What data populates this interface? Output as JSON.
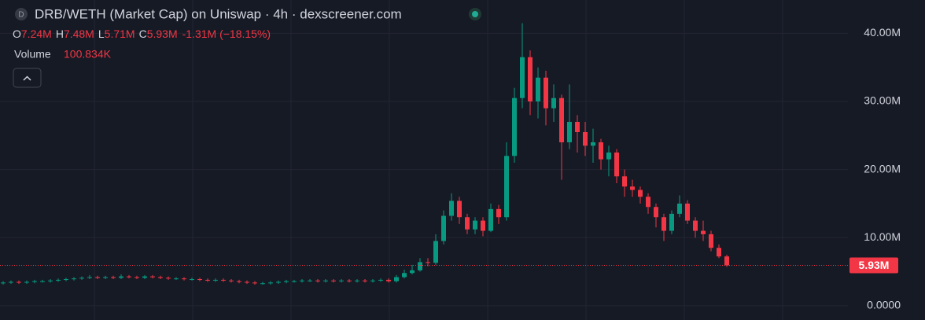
{
  "chart_data": {
    "type": "candlestick",
    "title": "DRB/WETH (Market Cap) on Uniswap · 4h · dexscreener.com",
    "icon_letter": "D",
    "ohlc_legend": [
      {
        "label": "O",
        "value": "7.24M"
      },
      {
        "label": "H",
        "value": "7.48M"
      },
      {
        "label": "L",
        "value": "5.71M"
      },
      {
        "label": "C",
        "value": "5.93M"
      }
    ],
    "change": "-1.31M (−18.15%)",
    "volume_label": "Volume",
    "volume_value": "100.834K",
    "up_color": "#089981",
    "down_color": "#f23645",
    "ylim": [
      -2.1,
      44.9
    ],
    "yticks": [
      {
        "value": 0,
        "label": "0.0000"
      },
      {
        "value": 10,
        "label": "10.00M"
      },
      {
        "value": 20,
        "label": "20.00M"
      },
      {
        "value": 30,
        "label": "30.00M"
      },
      {
        "value": 40,
        "label": "40.00M"
      }
    ],
    "grid": true,
    "last_price": {
      "value": 5.93,
      "label": "5.93M"
    },
    "open": [
      3.3,
      3.4,
      3.5,
      3.4,
      3.5,
      3.6,
      3.6,
      3.7,
      3.8,
      3.9,
      4.0,
      4.1,
      4.2,
      4.1,
      4.2,
      4.1,
      4.3,
      4.2,
      4.1,
      4.3,
      4.2,
      4.1,
      4.0,
      4.0,
      3.9,
      3.9,
      3.8,
      3.7,
      3.8,
      3.7,
      3.6,
      3.5,
      3.4,
      3.3,
      3.3,
      3.4,
      3.5,
      3.6,
      3.6,
      3.7,
      3.7,
      3.6,
      3.7,
      3.6,
      3.7,
      3.6,
      3.7,
      3.6,
      3.7,
      3.8,
      3.6,
      4.2,
      4.8,
      5.2,
      6.4,
      6.3,
      9.5,
      13.2,
      15.4,
      13.0,
      11.2,
      12.5,
      11.0,
      14.2,
      13.0,
      22.0,
      30.5,
      36.5,
      30.0,
      33.5,
      29.0,
      30.5,
      24.0,
      27.0,
      25.5,
      23.5,
      24.0,
      21.5,
      22.5,
      19.0,
      17.5,
      17.0,
      16.0,
      14.5,
      13.0,
      11.0,
      13.5,
      15.0,
      12.5,
      11.0,
      10.5,
      8.5,
      7.24
    ],
    "high": [
      3.6,
      3.7,
      3.7,
      3.7,
      3.8,
      3.8,
      3.9,
      4.0,
      4.1,
      4.2,
      4.3,
      4.5,
      4.4,
      4.4,
      4.4,
      4.6,
      4.5,
      4.4,
      4.5,
      4.5,
      4.4,
      4.3,
      4.2,
      4.2,
      4.1,
      4.1,
      4.0,
      4.0,
      4.0,
      3.9,
      3.8,
      3.7,
      3.6,
      3.5,
      3.6,
      3.7,
      3.8,
      3.8,
      3.9,
      3.9,
      3.9,
      3.9,
      3.9,
      3.9,
      3.9,
      3.9,
      3.9,
      3.9,
      4.0,
      4.0,
      4.5,
      5.3,
      6.0,
      7.0,
      7.0,
      10.5,
      14.0,
      16.5,
      16.0,
      13.5,
      13.0,
      13.0,
      15.0,
      14.8,
      24.0,
      32.0,
      41.5,
      37.5,
      35.0,
      34.5,
      32.5,
      31.0,
      32.5,
      28.0,
      27.0,
      26.0,
      24.5,
      23.5,
      23.0,
      20.0,
      18.5,
      17.5,
      16.5,
      15.0,
      13.5,
      14.0,
      16.2,
      15.5,
      13.0,
      12.5,
      11.0,
      9.0,
      7.48
    ],
    "low": [
      3.1,
      3.2,
      3.2,
      3.2,
      3.3,
      3.4,
      3.4,
      3.5,
      3.6,
      3.7,
      3.8,
      3.9,
      3.9,
      3.9,
      3.9,
      3.9,
      4.0,
      3.9,
      3.9,
      4.0,
      3.9,
      3.8,
      3.8,
      3.7,
      3.7,
      3.6,
      3.5,
      3.5,
      3.5,
      3.4,
      3.3,
      3.2,
      3.1,
      3.1,
      3.1,
      3.2,
      3.3,
      3.4,
      3.4,
      3.5,
      3.4,
      3.4,
      3.4,
      3.4,
      3.4,
      3.4,
      3.4,
      3.4,
      3.5,
      3.4,
      3.4,
      4.0,
      4.6,
      5.0,
      5.8,
      6.0,
      9.0,
      12.5,
      12.0,
      10.5,
      10.5,
      10.2,
      10.8,
      12.0,
      12.5,
      21.0,
      29.0,
      28.0,
      27.5,
      26.5,
      27.0,
      18.5,
      23.0,
      22.5,
      22.0,
      21.0,
      20.0,
      19.0,
      18.0,
      16.0,
      16.0,
      15.0,
      13.5,
      11.5,
      9.5,
      10.5,
      13.0,
      12.0,
      10.0,
      9.5,
      8.0,
      7.0,
      5.71
    ],
    "close": [
      3.4,
      3.5,
      3.4,
      3.5,
      3.6,
      3.6,
      3.7,
      3.8,
      3.9,
      4.0,
      4.1,
      4.2,
      4.1,
      4.2,
      4.1,
      4.3,
      4.2,
      4.1,
      4.3,
      4.2,
      4.1,
      4.0,
      4.0,
      3.9,
      3.9,
      3.8,
      3.7,
      3.8,
      3.7,
      3.6,
      3.5,
      3.4,
      3.3,
      3.3,
      3.4,
      3.5,
      3.6,
      3.6,
      3.7,
      3.7,
      3.6,
      3.7,
      3.6,
      3.7,
      3.6,
      3.7,
      3.6,
      3.7,
      3.8,
      3.6,
      4.2,
      4.8,
      5.2,
      6.4,
      6.3,
      9.5,
      13.2,
      15.4,
      13.0,
      11.2,
      12.5,
      11.0,
      14.2,
      13.0,
      22.0,
      30.5,
      36.5,
      30.0,
      33.5,
      29.0,
      30.5,
      24.0,
      27.0,
      25.5,
      23.5,
      24.0,
      21.5,
      22.5,
      19.0,
      17.5,
      17.0,
      16.0,
      14.5,
      13.0,
      11.0,
      13.5,
      15.0,
      12.5,
      11.0,
      10.5,
      8.5,
      7.24,
      5.93
    ]
  }
}
